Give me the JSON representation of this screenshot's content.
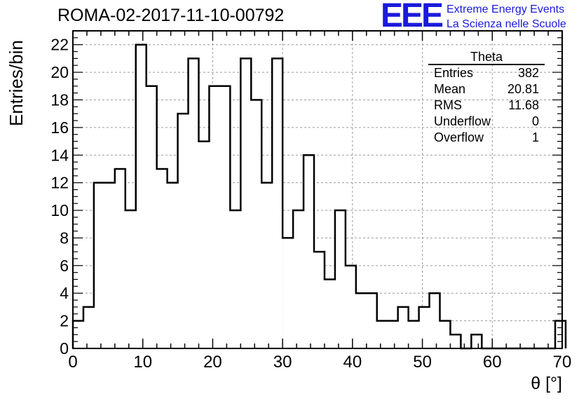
{
  "header": {
    "title": "ROMA-02-2017-11-10-00792",
    "logo_text": "EEE",
    "logo_line1": "Extreme Energy Events",
    "logo_line2": "La Scienza nelle Scuole"
  },
  "stats": {
    "title": "Theta",
    "rows": [
      {
        "label": "Entries",
        "value": "382"
      },
      {
        "label": "Mean",
        "value": "20.81"
      },
      {
        "label": "RMS",
        "value": "11.68"
      },
      {
        "label": "Underflow",
        "value": "0"
      },
      {
        "label": "Overflow",
        "value": "1"
      }
    ]
  },
  "colors": {
    "accent": "#1a1adc",
    "line": "#000000",
    "grid": "#9a9a9a"
  },
  "chart_data": {
    "type": "bar",
    "title": "ROMA-02-2017-11-10-00792",
    "xlabel": "θ [°]",
    "ylabel": "Entries/bin",
    "xlim": [
      0,
      70
    ],
    "ylim": [
      0,
      23
    ],
    "bin_width": 1.5,
    "bin_edges_start": 0,
    "x_ticks": [
      0,
      10,
      20,
      30,
      40,
      50,
      60,
      70
    ],
    "y_ticks": [
      0,
      2,
      4,
      6,
      8,
      10,
      12,
      14,
      16,
      18,
      20,
      22
    ],
    "grid": true,
    "values": [
      2,
      3,
      12,
      12,
      13,
      10,
      22,
      19,
      13,
      12,
      17,
      21,
      15,
      19,
      19,
      10,
      21,
      18,
      12,
      21,
      8,
      10,
      14,
      7,
      5,
      10,
      6,
      4,
      4,
      2,
      2,
      3,
      2,
      3,
      4,
      2,
      1,
      0,
      1,
      0,
      0,
      0,
      0,
      0,
      0,
      0,
      2
    ]
  }
}
